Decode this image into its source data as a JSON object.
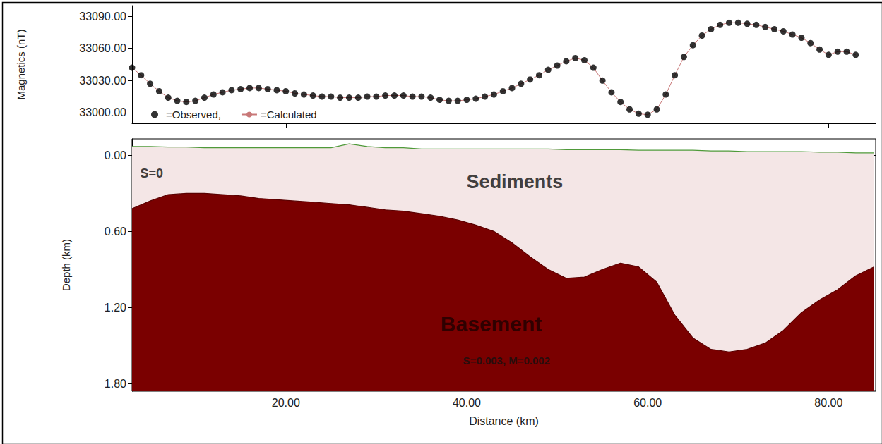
{
  "chart_data": [
    {
      "type": "line",
      "y_label": "Magnetics (nT)",
      "x": [
        3,
        4,
        5,
        6,
        7,
        8,
        9,
        10,
        11,
        12,
        13,
        14,
        15,
        16,
        17,
        18,
        19,
        20,
        21,
        22,
        23,
        24,
        25,
        26,
        27,
        28,
        29,
        30,
        31,
        32,
        33,
        34,
        35,
        36,
        37,
        38,
        39,
        40,
        41,
        42,
        43,
        44,
        45,
        46,
        47,
        48,
        49,
        50,
        51,
        52,
        53,
        54,
        55,
        56,
        57,
        58,
        59,
        60,
        61,
        62,
        63,
        64,
        65,
        66,
        67,
        68,
        69,
        70,
        71,
        72,
        73,
        74,
        75,
        76,
        77,
        78,
        79,
        80,
        81,
        82,
        83
      ],
      "series": [
        {
          "name": "=Observed,",
          "type": "scatter",
          "marker": "circle",
          "color": "#000000",
          "values": [
            33042,
            33035,
            33027,
            33020,
            33014,
            33011,
            33010,
            33011,
            33014,
            33017,
            33019,
            33021,
            33022,
            33023,
            33023,
            33022,
            33021,
            33020,
            33018,
            33017,
            33016,
            33015,
            33015,
            33014,
            33014,
            33014,
            33015,
            33015,
            33016,
            33016,
            33016,
            33015,
            33015,
            33014,
            33012,
            33011,
            33011,
            33012,
            33013,
            33015,
            33017,
            33020,
            33023,
            33027,
            33031,
            33035,
            33040,
            33044,
            33048,
            33051,
            33049,
            33042,
            33030,
            33019,
            33010,
            33003,
            32999,
            32998,
            33003,
            33017,
            33035,
            33052,
            33063,
            33072,
            33078,
            33082,
            33084,
            33084,
            33083,
            33082,
            33080,
            33078,
            33076,
            33073,
            33070,
            33065,
            33059,
            33054,
            33057,
            33057,
            33054
          ]
        },
        {
          "name": "=Calculated",
          "type": "line",
          "color": "#c87878",
          "values": [
            33042,
            33035,
            33027,
            33020,
            33014,
            33011,
            33010,
            33011,
            33014,
            33017,
            33019,
            33021,
            33022,
            33023,
            33023,
            33022,
            33021,
            33020,
            33018,
            33017,
            33016,
            33015,
            33015,
            33014,
            33014,
            33014,
            33015,
            33015,
            33016,
            33016,
            33016,
            33015,
            33015,
            33014,
            33012,
            33011,
            33011,
            33012,
            33013,
            33015,
            33017,
            33020,
            33023,
            33027,
            33031,
            33035,
            33040,
            33044,
            33048,
            33051,
            33049,
            33042,
            33030,
            33019,
            33010,
            33003,
            32999,
            32998,
            33003,
            33017,
            33035,
            33052,
            33063,
            33072,
            33078,
            33082,
            33084,
            33084,
            33083,
            33082,
            33080,
            33078,
            33076,
            33073,
            33070,
            33065,
            33059,
            33054,
            33057,
            33057,
            33054
          ]
        }
      ],
      "xlim": [
        3,
        85.2
      ],
      "xticks": [
        20,
        40,
        60,
        80
      ],
      "ylim": [
        32990,
        33100
      ],
      "yticks": [
        {
          "value": 33000,
          "label": "33000.00"
        },
        {
          "value": 33030,
          "label": "33030.00"
        },
        {
          "value": 33060,
          "label": "33060.00"
        },
        {
          "value": 33090,
          "label": "33090.00"
        }
      ],
      "tick_labels": "y",
      "legend": "bottom-left",
      "grid": false
    },
    {
      "type": "area",
      "x_label": "Distance (km)",
      "y_label": "Depth (km)",
      "x": [
        3,
        5,
        7,
        9,
        11,
        13,
        15,
        17,
        19,
        21,
        23,
        25,
        27,
        29,
        31,
        33,
        35,
        37,
        39,
        41,
        43,
        45,
        47,
        49,
        51,
        53,
        55,
        57,
        59,
        61,
        63,
        65,
        67,
        69,
        71,
        73,
        75,
        77,
        79,
        81,
        83,
        85
      ],
      "series": [
        {
          "name": "Sediments",
          "color": "#f4e6e6",
          "label_x": 45.3,
          "label_y": 0.21,
          "values": [
            -0.07,
            -0.07,
            -0.065,
            -0.065,
            -0.06,
            -0.06,
            -0.06,
            -0.06,
            -0.06,
            -0.06,
            -0.06,
            -0.06,
            -0.09,
            -0.07,
            -0.06,
            -0.06,
            -0.05,
            -0.05,
            -0.05,
            -0.05,
            -0.05,
            -0.05,
            -0.05,
            -0.05,
            -0.045,
            -0.045,
            -0.045,
            -0.045,
            -0.04,
            -0.04,
            -0.04,
            -0.04,
            -0.035,
            -0.035,
            -0.03,
            -0.03,
            -0.03,
            -0.03,
            -0.025,
            -0.025,
            -0.02,
            -0.02
          ]
        },
        {
          "name": "Basement",
          "color": "#7a0000",
          "label_x": 42.7,
          "label_y": 1.33,
          "values": [
            0.42,
            0.36,
            0.31,
            0.3,
            0.3,
            0.31,
            0.32,
            0.34,
            0.35,
            0.36,
            0.37,
            0.38,
            0.39,
            0.41,
            0.43,
            0.44,
            0.46,
            0.48,
            0.51,
            0.55,
            0.6,
            0.69,
            0.8,
            0.9,
            0.97,
            0.96,
            0.9,
            0.85,
            0.88,
            1.0,
            1.26,
            1.44,
            1.53,
            1.55,
            1.53,
            1.48,
            1.38,
            1.24,
            1.14,
            1.06,
            0.95,
            0.88
          ]
        }
      ],
      "annotations": [
        {
          "text": "S=0",
          "x": 3.9,
          "y": 0.14
        },
        {
          "text": "S=0.003, M=0.002",
          "x": 44.4,
          "y": 1.62
        }
      ],
      "xlim": [
        3,
        85.2
      ],
      "xticks": [
        {
          "value": 20,
          "label": "20.00"
        },
        {
          "value": 40,
          "label": "40.00"
        },
        {
          "value": 60,
          "label": "60.00"
        },
        {
          "value": 80,
          "label": "80.00"
        }
      ],
      "ylim": [
        -0.13,
        1.86
      ],
      "yticks": [
        {
          "value": 0,
          "label": "0.00"
        },
        {
          "value": 0.6,
          "label": "0.60"
        },
        {
          "value": 1.2,
          "label": "1.20"
        },
        {
          "value": 1.8,
          "label": "1.80"
        }
      ],
      "grid": false
    }
  ]
}
